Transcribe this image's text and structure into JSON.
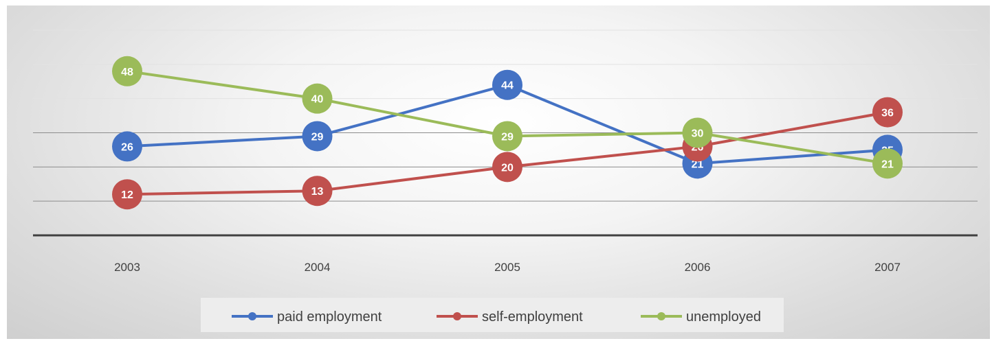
{
  "chart_data": {
    "type": "line",
    "categories": [
      "2003",
      "2004",
      "2005",
      "2006",
      "2007"
    ],
    "series": [
      {
        "name": "paid employment",
        "color": "#4472c4",
        "values": [
          26,
          29,
          44,
          21,
          25
        ]
      },
      {
        "name": "self-employment",
        "color": "#c0504d",
        "values": [
          12,
          13,
          20,
          26,
          36
        ]
      },
      {
        "name": "unemployed",
        "color": "#9bbb59",
        "values": [
          48,
          40,
          29,
          30,
          21
        ]
      }
    ],
    "title": "",
    "xlabel": "",
    "ylabel": "",
    "ylim": [
      0,
      60
    ],
    "grid": true,
    "y_tick_labels_shown": false,
    "data_labels": true,
    "legend_position": "bottom"
  }
}
